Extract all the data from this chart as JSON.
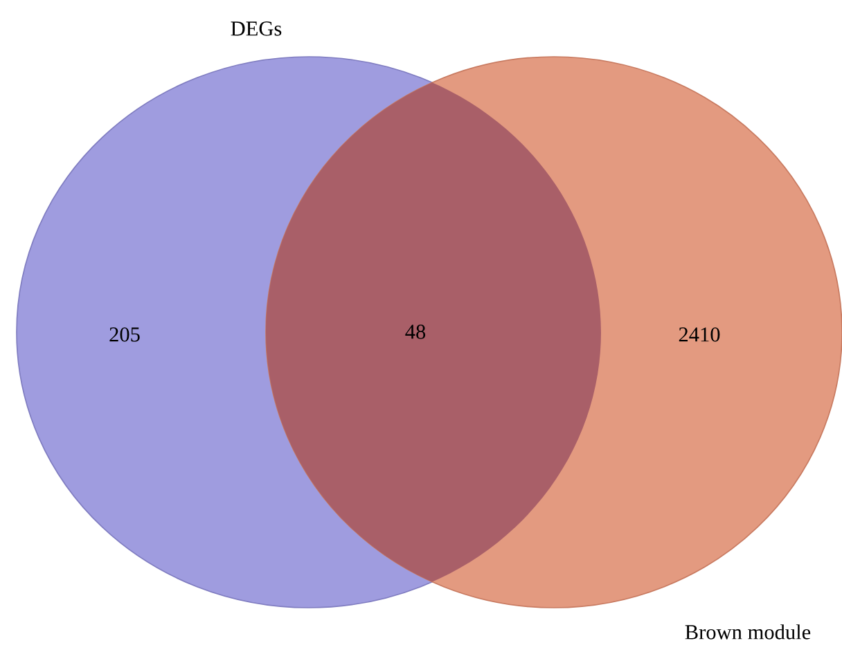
{
  "chart_data": {
    "type": "other",
    "categories": [
      null,
      null,
      null
    ],
    "values": [
      205,
      48,
      2410
    ],
    "colors": [
      "#9f9cdf",
      "#a95f68",
      "#e39a80"
    ],
    "annotations": [
      "DEGs",
      "Brown module"
    ],
    "data_labels": true
  }
}
